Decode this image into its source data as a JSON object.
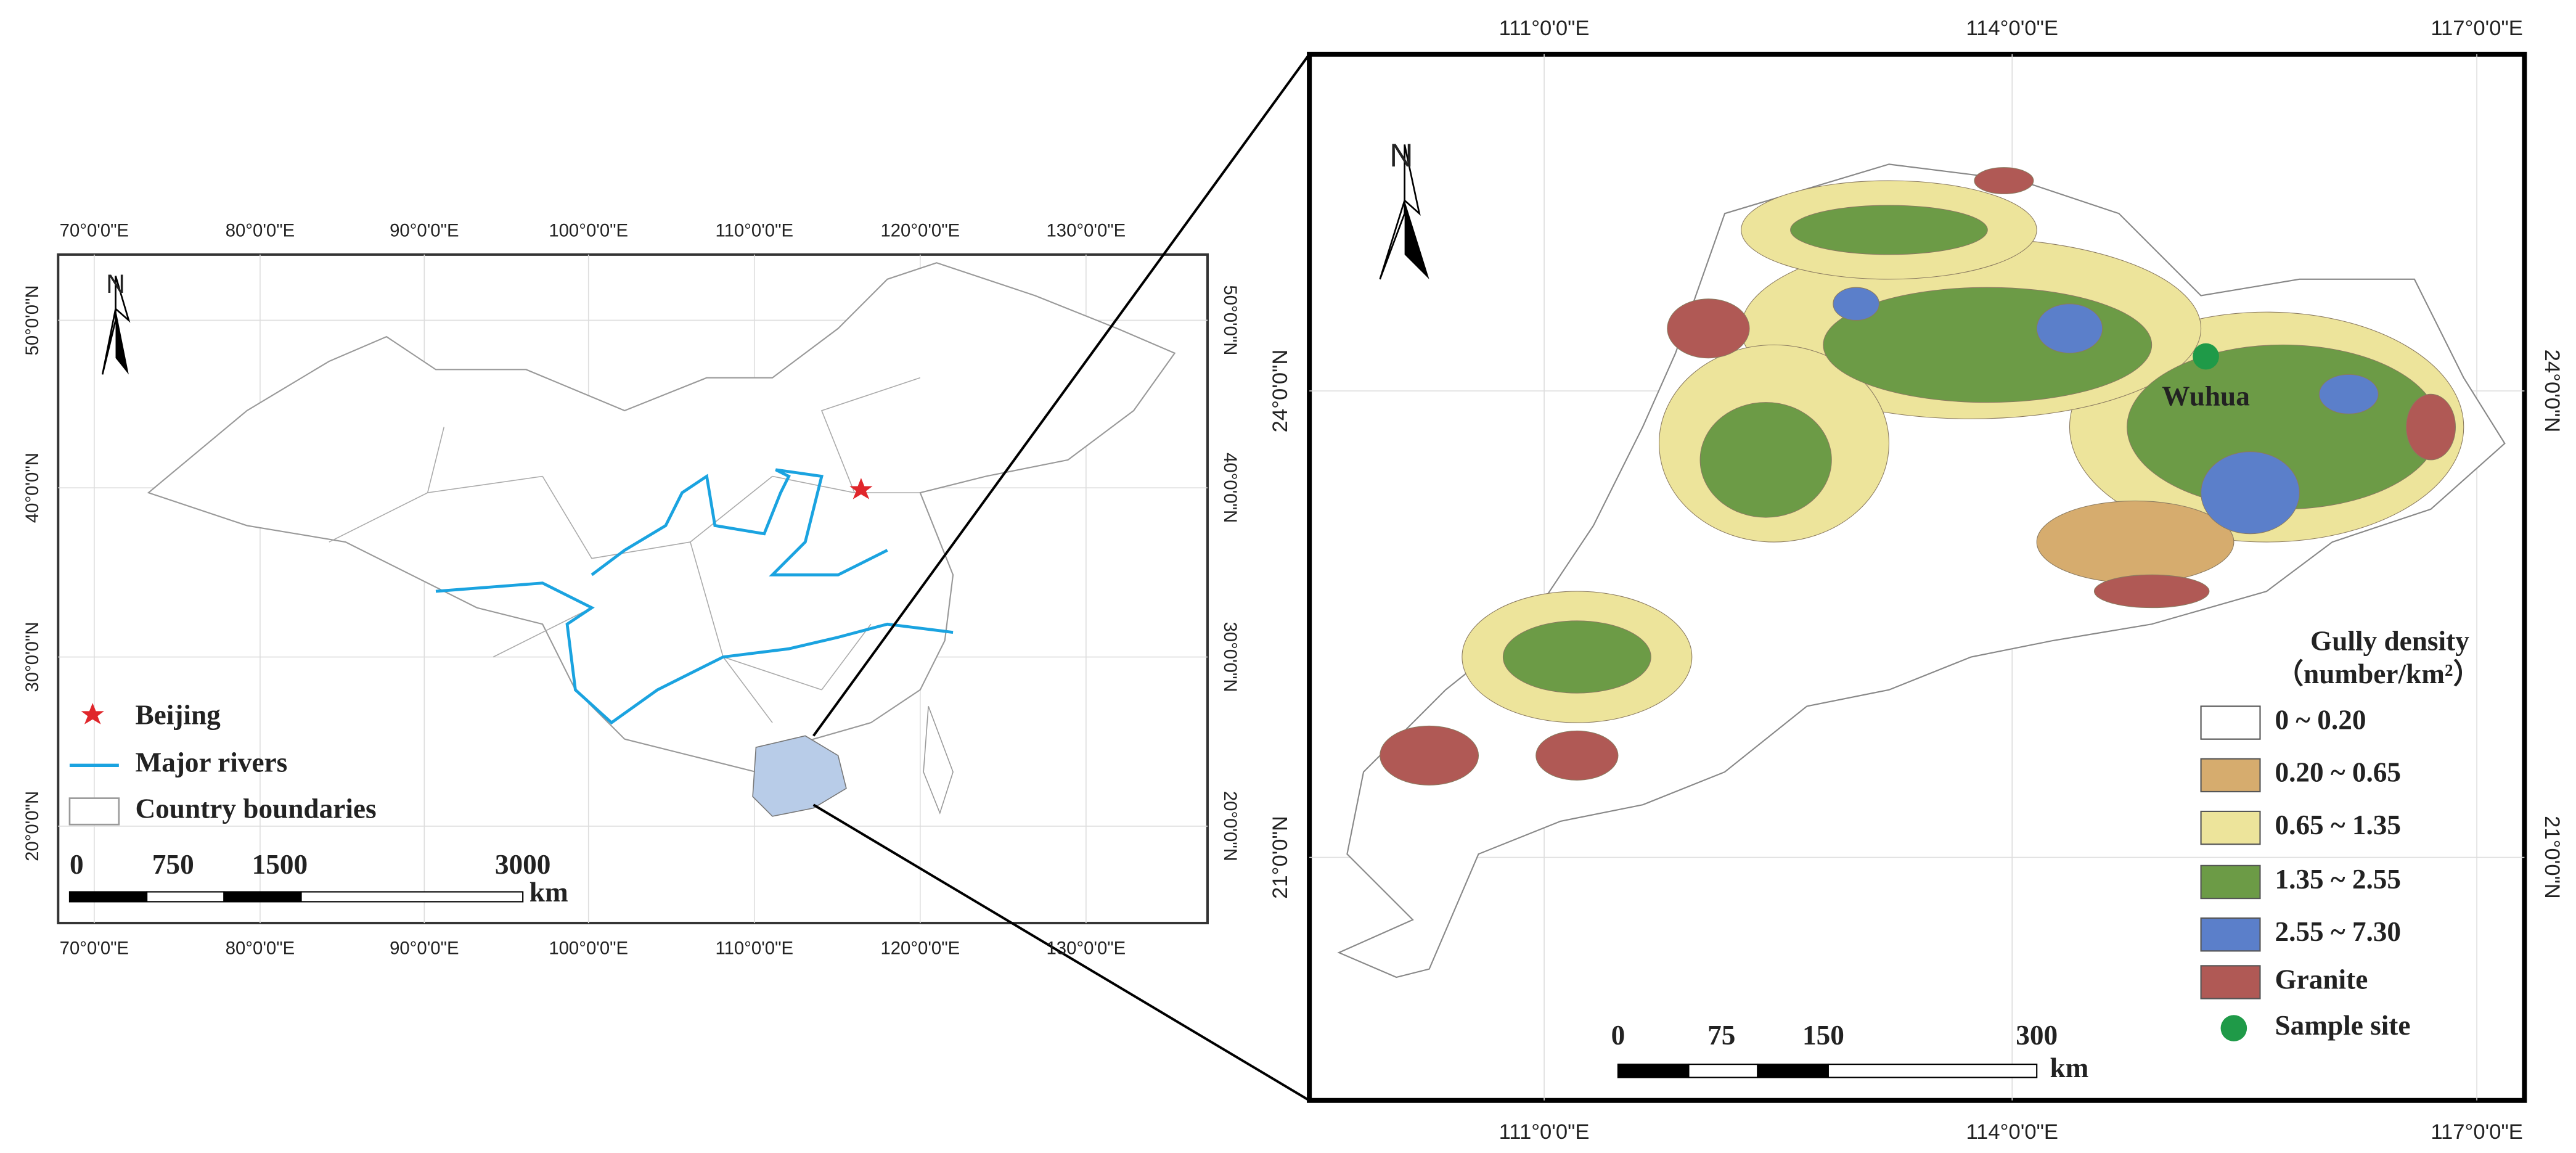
{
  "left_map": {
    "lon_labels": [
      "70°0'0\"E",
      "80°0'0\"E",
      "90°0'0\"E",
      "100°0'0\"E",
      "110°0'0\"E",
      "120°0'0\"E",
      "130°0'0\"E"
    ],
    "lat_labels": [
      "50°0'0\"N",
      "40°0'0\"N",
      "30°0'0\"N",
      "20°0'0\"N"
    ],
    "north": "N",
    "legend": {
      "items": [
        {
          "label": "Beijing",
          "color": "#e0262b"
        },
        {
          "label": "Major rivers",
          "color": "#1aa3e0"
        },
        {
          "label": "Country boundaries",
          "color": "#9a9a9a"
        }
      ]
    },
    "scale_bar": {
      "labels": [
        "0",
        "750",
        "1500",
        "3000"
      ],
      "unit": "km"
    }
  },
  "right_map": {
    "lon_labels": [
      "111°0'0\"E",
      "114°0'0\"E",
      "117°0'0\"E"
    ],
    "lat_labels": [
      "24°0'0\"N",
      "21°0'0\"N"
    ],
    "north": "N",
    "site_label": "Wuhua",
    "legend": {
      "title": "Gully density",
      "unit": "（number/km²）",
      "items": [
        {
          "label": "0 ~ 0.20",
          "color": "#ffffff"
        },
        {
          "label": "0.20 ~ 0.65",
          "color": "#d6ac6e"
        },
        {
          "label": "0.65 ~ 1.35",
          "color": "#ede49b"
        },
        {
          "label": "1.35 ~ 2.55",
          "color": "#6c9b46"
        },
        {
          "label": "2.55 ~ 7.30",
          "color": "#5b7fca"
        },
        {
          "label": "Granite",
          "color": "#b05955"
        },
        {
          "label": "Sample site",
          "color": "#1f9a48"
        }
      ]
    },
    "scale_bar": {
      "labels": [
        "0",
        "75",
        "150",
        "300"
      ],
      "unit": "km"
    }
  }
}
